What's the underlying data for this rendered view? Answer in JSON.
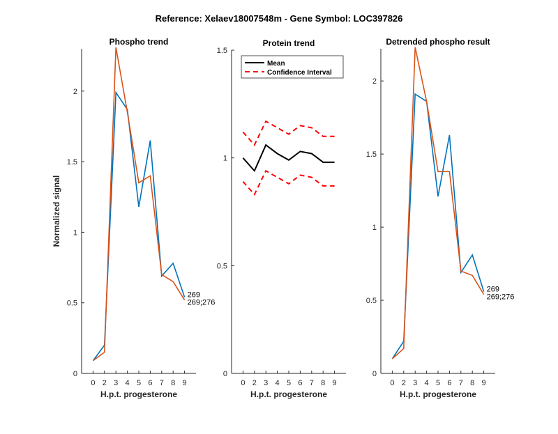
{
  "suptitle": "Reference:  Xelaev18007548m - Gene Symbol:  LOC397826",
  "colors": {
    "blue": "#0072BD",
    "orange": "#D95319",
    "mean": "#000000",
    "ci": "#FF0000"
  },
  "chart_data": [
    {
      "type": "line",
      "title": "Phospho trend",
      "xlabel": "H.p.t. progesterone",
      "ylabel": "Normalized signal",
      "categories": [
        "0",
        "2",
        "3",
        "4",
        "5",
        "6",
        "7",
        "8",
        "9"
      ],
      "ylim": [
        0,
        2.3
      ],
      "yticks": [
        "0",
        "0.5",
        "1",
        "1.5",
        "2"
      ],
      "series": [
        {
          "name": "269",
          "color": "#0072BD",
          "values": [
            0.09,
            0.2,
            1.99,
            1.87,
            1.18,
            1.65,
            0.69,
            0.78,
            0.54
          ]
        },
        {
          "name": "269;276",
          "color": "#D95319",
          "values": [
            0.09,
            0.15,
            2.31,
            1.85,
            1.35,
            1.4,
            0.7,
            0.65,
            0.52
          ]
        }
      ]
    },
    {
      "type": "line",
      "title": "Protein trend",
      "xlabel": "H.p.t. progesterone",
      "categories": [
        "0",
        "2",
        "3",
        "4",
        "5",
        "6",
        "7",
        "8",
        "9"
      ],
      "ylim": [
        0,
        1.5
      ],
      "yticks": [
        "0",
        "0.5",
        "1",
        "1.5"
      ],
      "legend": {
        "placement": "top-left",
        "entries": [
          "Mean",
          "Confidence Interval"
        ]
      },
      "series": [
        {
          "name": "Mean",
          "color": "#000000",
          "style": "solid",
          "values": [
            1.0,
            0.94,
            1.06,
            1.02,
            0.99,
            1.03,
            1.02,
            0.98,
            0.98
          ]
        },
        {
          "name": "Confidence Interval",
          "color": "#FF0000",
          "style": "dashed",
          "values": [
            1.12,
            1.06,
            1.17,
            1.14,
            1.11,
            1.15,
            1.14,
            1.1,
            1.1
          ]
        },
        {
          "color": "#FF0000",
          "style": "dashed",
          "values": [
            0.89,
            0.83,
            0.94,
            0.91,
            0.88,
            0.92,
            0.91,
            0.87,
            0.87
          ]
        }
      ]
    },
    {
      "type": "line",
      "title": "Detrended phospho result",
      "xlabel": "H.p.t. progesterone",
      "categories": [
        "0",
        "2",
        "3",
        "4",
        "5",
        "6",
        "7",
        "8",
        "9"
      ],
      "ylim": [
        0,
        2.22
      ],
      "yticks": [
        "0",
        "0.5",
        "1",
        "1.5",
        "2"
      ],
      "series": [
        {
          "name": "269",
          "color": "#0072BD",
          "values": [
            0.1,
            0.22,
            1.91,
            1.86,
            1.21,
            1.63,
            0.69,
            0.81,
            0.56
          ]
        },
        {
          "name": "269;276",
          "color": "#D95319",
          "values": [
            0.1,
            0.17,
            2.23,
            1.86,
            1.38,
            1.38,
            0.7,
            0.67,
            0.54
          ]
        }
      ]
    }
  ]
}
